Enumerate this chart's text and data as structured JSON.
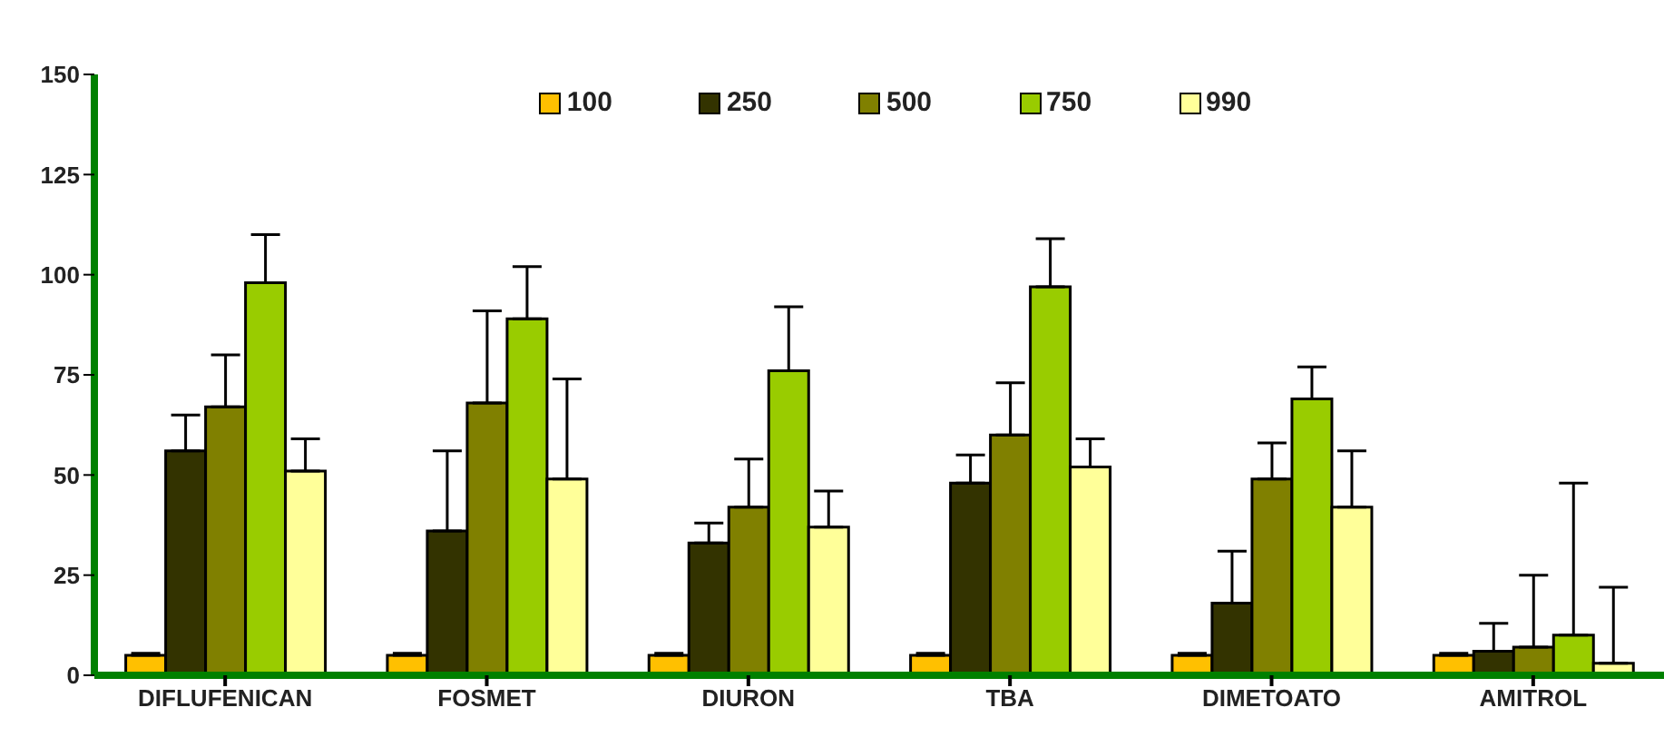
{
  "chart_data": {
    "type": "bar",
    "categories": [
      "DIFLUFENICAN",
      "FOSMET",
      "DIURON",
      "TBA",
      "DIMETOATO",
      "AMITROL"
    ],
    "series": [
      {
        "name": "100",
        "color": "#ffc000",
        "values": [
          5,
          5,
          5,
          5,
          5,
          5
        ],
        "errors": [
          [
            5,
            5.5
          ],
          [
            5,
            5.5
          ],
          [
            5,
            5.5
          ],
          [
            5,
            5.5
          ],
          [
            5,
            5.5
          ],
          [
            5,
            5.5
          ]
        ]
      },
      {
        "name": "250",
        "color": "#333300",
        "values": [
          56,
          36,
          33,
          48,
          18,
          6
        ],
        "errors": [
          [
            56,
            65
          ],
          [
            36,
            56
          ],
          [
            33,
            38
          ],
          [
            48,
            55
          ],
          [
            18,
            31
          ],
          [
            6,
            13
          ]
        ]
      },
      {
        "name": "500",
        "color": "#808000",
        "values": [
          67,
          68,
          42,
          60,
          49,
          7
        ],
        "errors": [
          [
            67,
            80
          ],
          [
            68,
            91
          ],
          [
            42,
            54
          ],
          [
            60,
            73
          ],
          [
            49,
            58
          ],
          [
            7,
            25
          ]
        ]
      },
      {
        "name": "750",
        "color": "#99cc00",
        "values": [
          98,
          89,
          76,
          97,
          69,
          10
        ],
        "errors": [
          [
            98,
            110
          ],
          [
            89,
            102
          ],
          [
            76,
            92
          ],
          [
            97,
            109
          ],
          [
            69,
            77
          ],
          [
            10,
            48
          ]
        ]
      },
      {
        "name": "990",
        "color": "#ffff99",
        "values": [
          51,
          49,
          37,
          52,
          42,
          3
        ],
        "errors": [
          [
            51,
            59
          ],
          [
            49,
            74
          ],
          [
            37,
            46
          ],
          [
            52,
            59
          ],
          [
            42,
            56
          ],
          [
            3,
            22
          ]
        ]
      }
    ],
    "ylim": [
      0,
      150
    ],
    "yticks": [
      0,
      25,
      50,
      75,
      100,
      125,
      150
    ],
    "grid": false,
    "legend": "top"
  }
}
